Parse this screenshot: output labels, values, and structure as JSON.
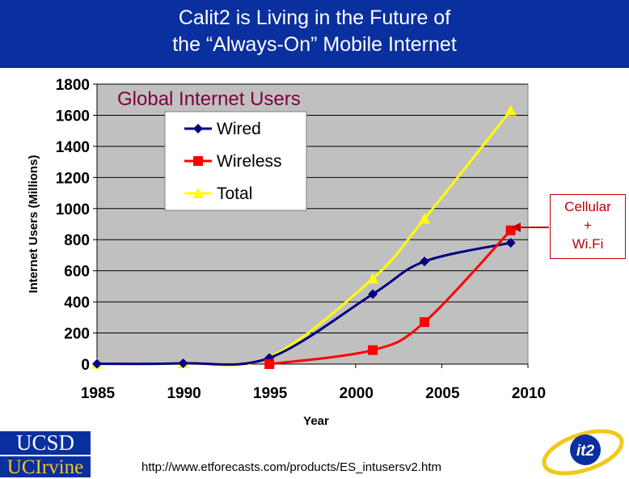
{
  "slide": {
    "title_line1": "Calit2 is Living in the Future of",
    "title_line2": "the  “Always-On” Mobile Internet",
    "source_url": "http://www.etforecasts.com/products/ES_intusersv2.htm"
  },
  "callout": {
    "line1": "Cellular",
    "line2": "+",
    "line3": "Wi.Fi"
  },
  "logos": {
    "ucsd": "UCSD",
    "uci": "UCIrvine",
    "it2": "it2"
  },
  "colors": {
    "title_bg": "#0a2f9e",
    "plot_bg": "#c0c0c0",
    "wired": "#000080",
    "wireless": "#ff0000",
    "total": "#ffff00",
    "callout": "#c00000",
    "chart_title": "#800040"
  },
  "chart_data": {
    "type": "line",
    "title": "Global Internet Users",
    "xlabel": "Year",
    "ylabel": "Internet Users (Millions)",
    "xlim": [
      1985,
      2010
    ],
    "ylim": [
      0,
      1800
    ],
    "x_ticks": [
      1985,
      1990,
      1995,
      2000,
      2005,
      2010
    ],
    "y_ticks": [
      0,
      200,
      400,
      600,
      800,
      1000,
      1200,
      1400,
      1600,
      1800
    ],
    "grid": "horizontal",
    "legend_position": "top-left",
    "series": [
      {
        "name": "Wired",
        "marker": "diamond",
        "x": [
          1985,
          1990,
          1995,
          2001,
          2004,
          2009
        ],
        "y": [
          2,
          5,
          40,
          450,
          660,
          780
        ]
      },
      {
        "name": "Wireless",
        "marker": "square",
        "x": [
          1995,
          2001,
          2004,
          2009
        ],
        "y": [
          0,
          90,
          270,
          860
        ]
      },
      {
        "name": "Total",
        "marker": "triangle",
        "x": [
          1985,
          1990,
          1995,
          2001,
          2004,
          2009
        ],
        "y": [
          2,
          5,
          45,
          550,
          935,
          1630
        ]
      }
    ]
  }
}
